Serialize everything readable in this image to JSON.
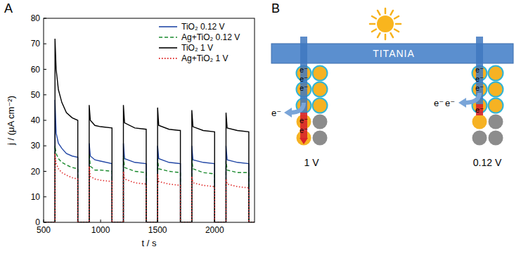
{
  "chart_data": {
    "type": "line",
    "x_label": "t / s",
    "y_label": "j / (μA cm⁻²)",
    "x": [
      500,
      600,
      600,
      610,
      630,
      660,
      700,
      750,
      800,
      800,
      900,
      900,
      910,
      950,
      1000,
      1100,
      1100,
      1200,
      1200,
      1210,
      1300,
      1400,
      1400,
      1500,
      1500,
      1510,
      1600,
      1700,
      1700,
      1800,
      1800,
      1810,
      1900,
      2000,
      2000,
      2100,
      2100,
      2110,
      2200,
      2300,
      2300,
      2350
    ],
    "series": [
      {
        "name": "TiO₂ 0.12 V",
        "color": "#2348a6",
        "line_style": "solid",
        "values": [
          0,
          0,
          48,
          35,
          31,
          29,
          27,
          26,
          25.5,
          0,
          0,
          31,
          26,
          24.5,
          24,
          23,
          0,
          0,
          31,
          25,
          23.5,
          23,
          0,
          0,
          30,
          25,
          23.5,
          23,
          0,
          0,
          30,
          24.5,
          23.5,
          23,
          0,
          0,
          30,
          24.5,
          23.5,
          23,
          0,
          0
        ]
      },
      {
        "name": "Ag+TiO₂ 0.12 V",
        "color": "#1a8a2e",
        "line_style": "dashed",
        "values": [
          0,
          0,
          30,
          27,
          25,
          23.5,
          22.5,
          21.5,
          21,
          0,
          0,
          27,
          22,
          20.5,
          20.5,
          20,
          0,
          0,
          26,
          21.5,
          20,
          19.5,
          0,
          0,
          25,
          21,
          20,
          19.5,
          0,
          0,
          25,
          21,
          19.5,
          19,
          0,
          0,
          24,
          20.5,
          19.5,
          19.5,
          0,
          0
        ]
      },
      {
        "name": "TiO₂ 1 V",
        "color": "#000000",
        "line_style": "solid",
        "values": [
          0,
          0,
          72,
          60,
          52,
          47,
          43,
          41,
          40,
          0,
          0,
          46,
          40,
          38,
          37.5,
          37,
          0,
          0,
          46,
          39,
          37,
          36.5,
          0,
          0,
          45,
          38,
          36.5,
          36,
          0,
          0,
          44,
          37.5,
          36,
          35.5,
          0,
          0,
          43,
          37,
          36,
          35.5,
          0,
          0
        ]
      },
      {
        "name": "Ag+TiO₂ 1 V",
        "color": "#e02b2b",
        "line_style": "dotted",
        "values": [
          0,
          0,
          27,
          23,
          21,
          19.5,
          18.5,
          17.5,
          17,
          0,
          0,
          22,
          18,
          17,
          16.5,
          16,
          0,
          0,
          20,
          17,
          15.5,
          15,
          0,
          0,
          19,
          16,
          15,
          14.5,
          0,
          0,
          18,
          15.5,
          14.5,
          14,
          0,
          0,
          17,
          15,
          14,
          13.5,
          0,
          0
        ]
      }
    ],
    "xlim": [
      500,
      2350
    ],
    "xticks": [
      500,
      1000,
      1500,
      2000
    ],
    "ylim": [
      0,
      80
    ],
    "yticks": [
      0,
      10,
      20,
      30,
      40,
      50,
      60,
      70,
      80
    ],
    "grid": false,
    "legend": "upper right"
  },
  "panel_labels": [
    "A",
    "B"
  ],
  "diagram": {
    "bar_label": "TITANIA",
    "electron": "e⁻",
    "left_bias": "1 V",
    "right_bias": "0.12 V"
  }
}
